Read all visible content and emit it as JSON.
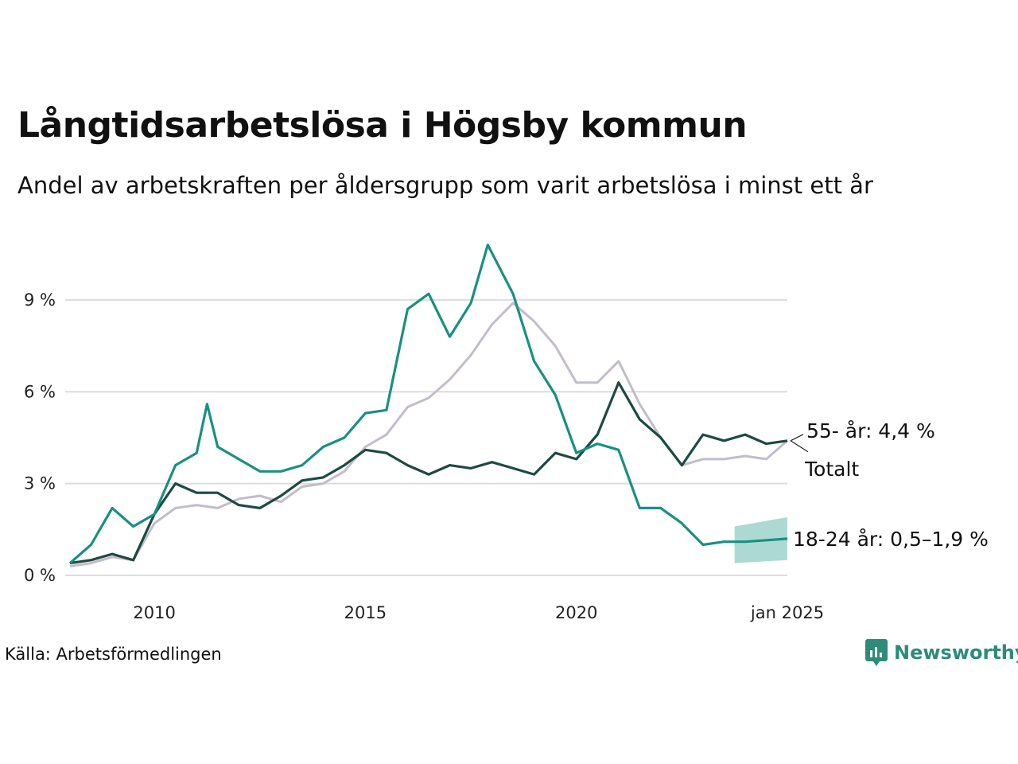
{
  "title": "Långtidsarbetslösa i Högsby kommun",
  "subtitle": "Andel av arbetskraften per åldersgrupp som varit arbetslösa i minst ett år",
  "source": "Källa: Arbetsförmedlingen",
  "brand": "Newsworthy",
  "colors": {
    "age_18_24": "#1a9080",
    "age_55": "#c3bdca",
    "total": "#1d4a42",
    "band": "#a8d8d0",
    "grid": "#dddddd",
    "brand": "#2e8b7a"
  },
  "chart_data": {
    "type": "line",
    "x_unit": "year",
    "xlim": [
      2008.0,
      2025.0
    ],
    "ylim": [
      0,
      11
    ],
    "y_ticks": [
      0,
      3,
      6,
      9
    ],
    "y_tick_labels": [
      "0 %",
      "3 %",
      "6 %",
      "9 %"
    ],
    "x_ticks": [
      2010,
      2015,
      2020,
      2025
    ],
    "x_tick_labels": [
      "2010",
      "2015",
      "2020",
      "jan 2025"
    ],
    "grid": "horizontal",
    "series": [
      {
        "key": "age_55",
        "label": "55- år: 4,4 %",
        "points": [
          [
            2008.0,
            0.3
          ],
          [
            2008.5,
            0.4
          ],
          [
            2009.0,
            0.6
          ],
          [
            2009.5,
            0.5
          ],
          [
            2010.0,
            1.7
          ],
          [
            2010.5,
            2.2
          ],
          [
            2011.0,
            2.3
          ],
          [
            2011.5,
            2.2
          ],
          [
            2012.0,
            2.5
          ],
          [
            2012.5,
            2.6
          ],
          [
            2013.0,
            2.4
          ],
          [
            2013.5,
            2.9
          ],
          [
            2014.0,
            3.0
          ],
          [
            2014.5,
            3.4
          ],
          [
            2015.0,
            4.2
          ],
          [
            2015.5,
            4.6
          ],
          [
            2016.0,
            5.5
          ],
          [
            2016.5,
            5.8
          ],
          [
            2017.0,
            6.4
          ],
          [
            2017.5,
            7.2
          ],
          [
            2018.0,
            8.2
          ],
          [
            2018.5,
            8.9
          ],
          [
            2019.0,
            8.3
          ],
          [
            2019.5,
            7.5
          ],
          [
            2020.0,
            6.3
          ],
          [
            2020.5,
            6.3
          ],
          [
            2021.0,
            7.0
          ],
          [
            2021.5,
            5.6
          ],
          [
            2022.0,
            4.5
          ],
          [
            2022.5,
            3.6
          ],
          [
            2023.0,
            3.8
          ],
          [
            2023.5,
            3.8
          ],
          [
            2024.0,
            3.9
          ],
          [
            2024.5,
            3.8
          ],
          [
            2025.0,
            4.4
          ]
        ]
      },
      {
        "key": "total",
        "label": "Totalt",
        "points": [
          [
            2008.0,
            0.4
          ],
          [
            2008.5,
            0.5
          ],
          [
            2009.0,
            0.7
          ],
          [
            2009.5,
            0.5
          ],
          [
            2010.0,
            2.0
          ],
          [
            2010.5,
            3.0
          ],
          [
            2011.0,
            2.7
          ],
          [
            2011.5,
            2.7
          ],
          [
            2012.0,
            2.3
          ],
          [
            2012.5,
            2.2
          ],
          [
            2013.0,
            2.6
          ],
          [
            2013.5,
            3.1
          ],
          [
            2014.0,
            3.2
          ],
          [
            2014.5,
            3.6
          ],
          [
            2015.0,
            4.1
          ],
          [
            2015.5,
            4.0
          ],
          [
            2016.0,
            3.6
          ],
          [
            2016.5,
            3.3
          ],
          [
            2017.0,
            3.6
          ],
          [
            2017.5,
            3.5
          ],
          [
            2018.0,
            3.7
          ],
          [
            2018.5,
            3.5
          ],
          [
            2019.0,
            3.3
          ],
          [
            2019.5,
            4.0
          ],
          [
            2020.0,
            3.8
          ],
          [
            2020.5,
            4.6
          ],
          [
            2021.0,
            6.3
          ],
          [
            2021.5,
            5.1
          ],
          [
            2022.0,
            4.5
          ],
          [
            2022.5,
            3.6
          ],
          [
            2023.0,
            4.6
          ],
          [
            2023.5,
            4.4
          ],
          [
            2024.0,
            4.6
          ],
          [
            2024.5,
            4.3
          ],
          [
            2025.0,
            4.4
          ]
        ]
      },
      {
        "key": "age_18_24",
        "label": "18-24 år: 0,5–1,9 %",
        "points": [
          [
            2008.0,
            0.4
          ],
          [
            2008.5,
            1.0
          ],
          [
            2009.0,
            2.2
          ],
          [
            2009.5,
            1.6
          ],
          [
            2010.0,
            2.0
          ],
          [
            2010.5,
            3.6
          ],
          [
            2011.0,
            4.0
          ],
          [
            2011.25,
            5.6
          ],
          [
            2011.5,
            4.2
          ],
          [
            2012.0,
            3.8
          ],
          [
            2012.5,
            3.4
          ],
          [
            2013.0,
            3.4
          ],
          [
            2013.5,
            3.6
          ],
          [
            2014.0,
            4.2
          ],
          [
            2014.5,
            4.5
          ],
          [
            2015.0,
            5.3
          ],
          [
            2015.5,
            5.4
          ],
          [
            2016.0,
            8.7
          ],
          [
            2016.5,
            9.2
          ],
          [
            2017.0,
            7.8
          ],
          [
            2017.5,
            8.9
          ],
          [
            2017.9,
            10.8
          ],
          [
            2018.5,
            9.2
          ],
          [
            2019.0,
            7.0
          ],
          [
            2019.5,
            5.9
          ],
          [
            2020.0,
            4.0
          ],
          [
            2020.5,
            4.3
          ],
          [
            2021.0,
            4.1
          ],
          [
            2021.5,
            2.2
          ],
          [
            2022.0,
            2.2
          ],
          [
            2022.5,
            1.7
          ],
          [
            2023.0,
            1.0
          ],
          [
            2023.5,
            1.1
          ],
          [
            2024.0,
            1.1
          ],
          [
            2024.5,
            1.15
          ],
          [
            2025.0,
            1.2
          ]
        ]
      }
    ],
    "uncertainty": {
      "series": "age_18_24",
      "x_start": 2023.75,
      "lower": 0.5,
      "upper": 1.9
    }
  }
}
